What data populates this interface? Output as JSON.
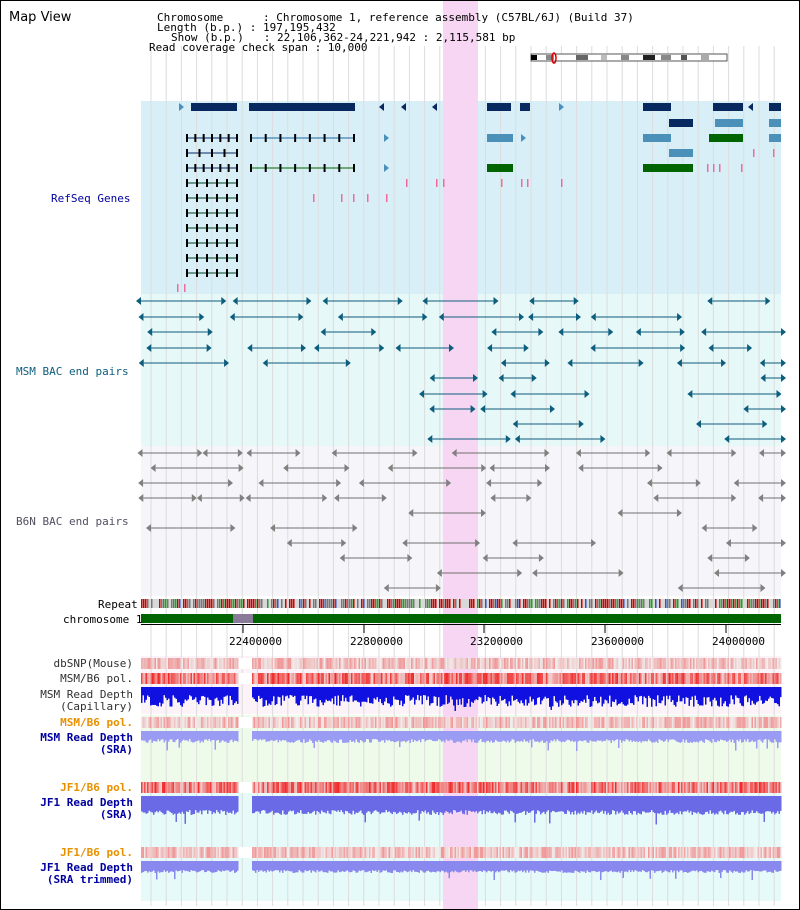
{
  "page": {
    "title": "Map View"
  },
  "header": {
    "chromosome_line": "Chromosome      : Chromosome 1, reference assembly (C57BL/6J) (Build 37)",
    "length_line": "Length (b.p.) : 197,195,432",
    "show_line": "Show (b.p.)   : 22,106,362-24,221,942 : 2,115,581 bp",
    "coverage_line": "Read coverage check span : 10,000"
  },
  "tracks": {
    "refseq": "RefSeq Genes",
    "msm_bac": "MSM BAC end pairs",
    "b6n_bac": "B6N BAC end pairs",
    "repeat": "Repeat",
    "chromosome": "chromosome 1"
  },
  "axis": {
    "ticks": [
      "22400000",
      "22800000",
      "23200000",
      "23600000",
      "24000000"
    ]
  },
  "lower_tracks": {
    "dbsnp": "dbSNP(Mouse)",
    "msm_b6_pol_1": "MSM/B6 pol.",
    "msm_read_depth_cap_1": "MSM Read Depth",
    "msm_read_depth_cap_2": "(Capillary)",
    "msm_b6_pol_2": "MSM/B6 pol.",
    "msm_read_depth_sra_1": "MSM Read Depth",
    "msm_read_depth_sra_2": "(SRA)",
    "jf1_b6_pol_1": "JF1/B6 pol.",
    "jf1_read_depth_sra_1": "JF1 Read Depth",
    "jf1_read_depth_sra_2": "(SRA)",
    "jf1_b6_pol_2": "JF1/B6 pol.",
    "jf1_read_depth_trim_1": "JF1 Read Depth",
    "jf1_read_depth_trim_2": "(SRA trimmed)"
  },
  "colors": {
    "refseq_bg": "#d8eff8",
    "msm_bg": "#e6f8f8",
    "b6n_bg": "#f6f6fa",
    "highlight": "#f6d6f2",
    "gene_dark": "#082860",
    "gene_mid": "#4a90b8",
    "gene_green": "#006400",
    "msm_line": "#0d5d7d",
    "b6n_line": "#707070",
    "orange_label": "#e89000",
    "blue_label": "#0000a0",
    "chromosome_green": "#006400"
  }
}
